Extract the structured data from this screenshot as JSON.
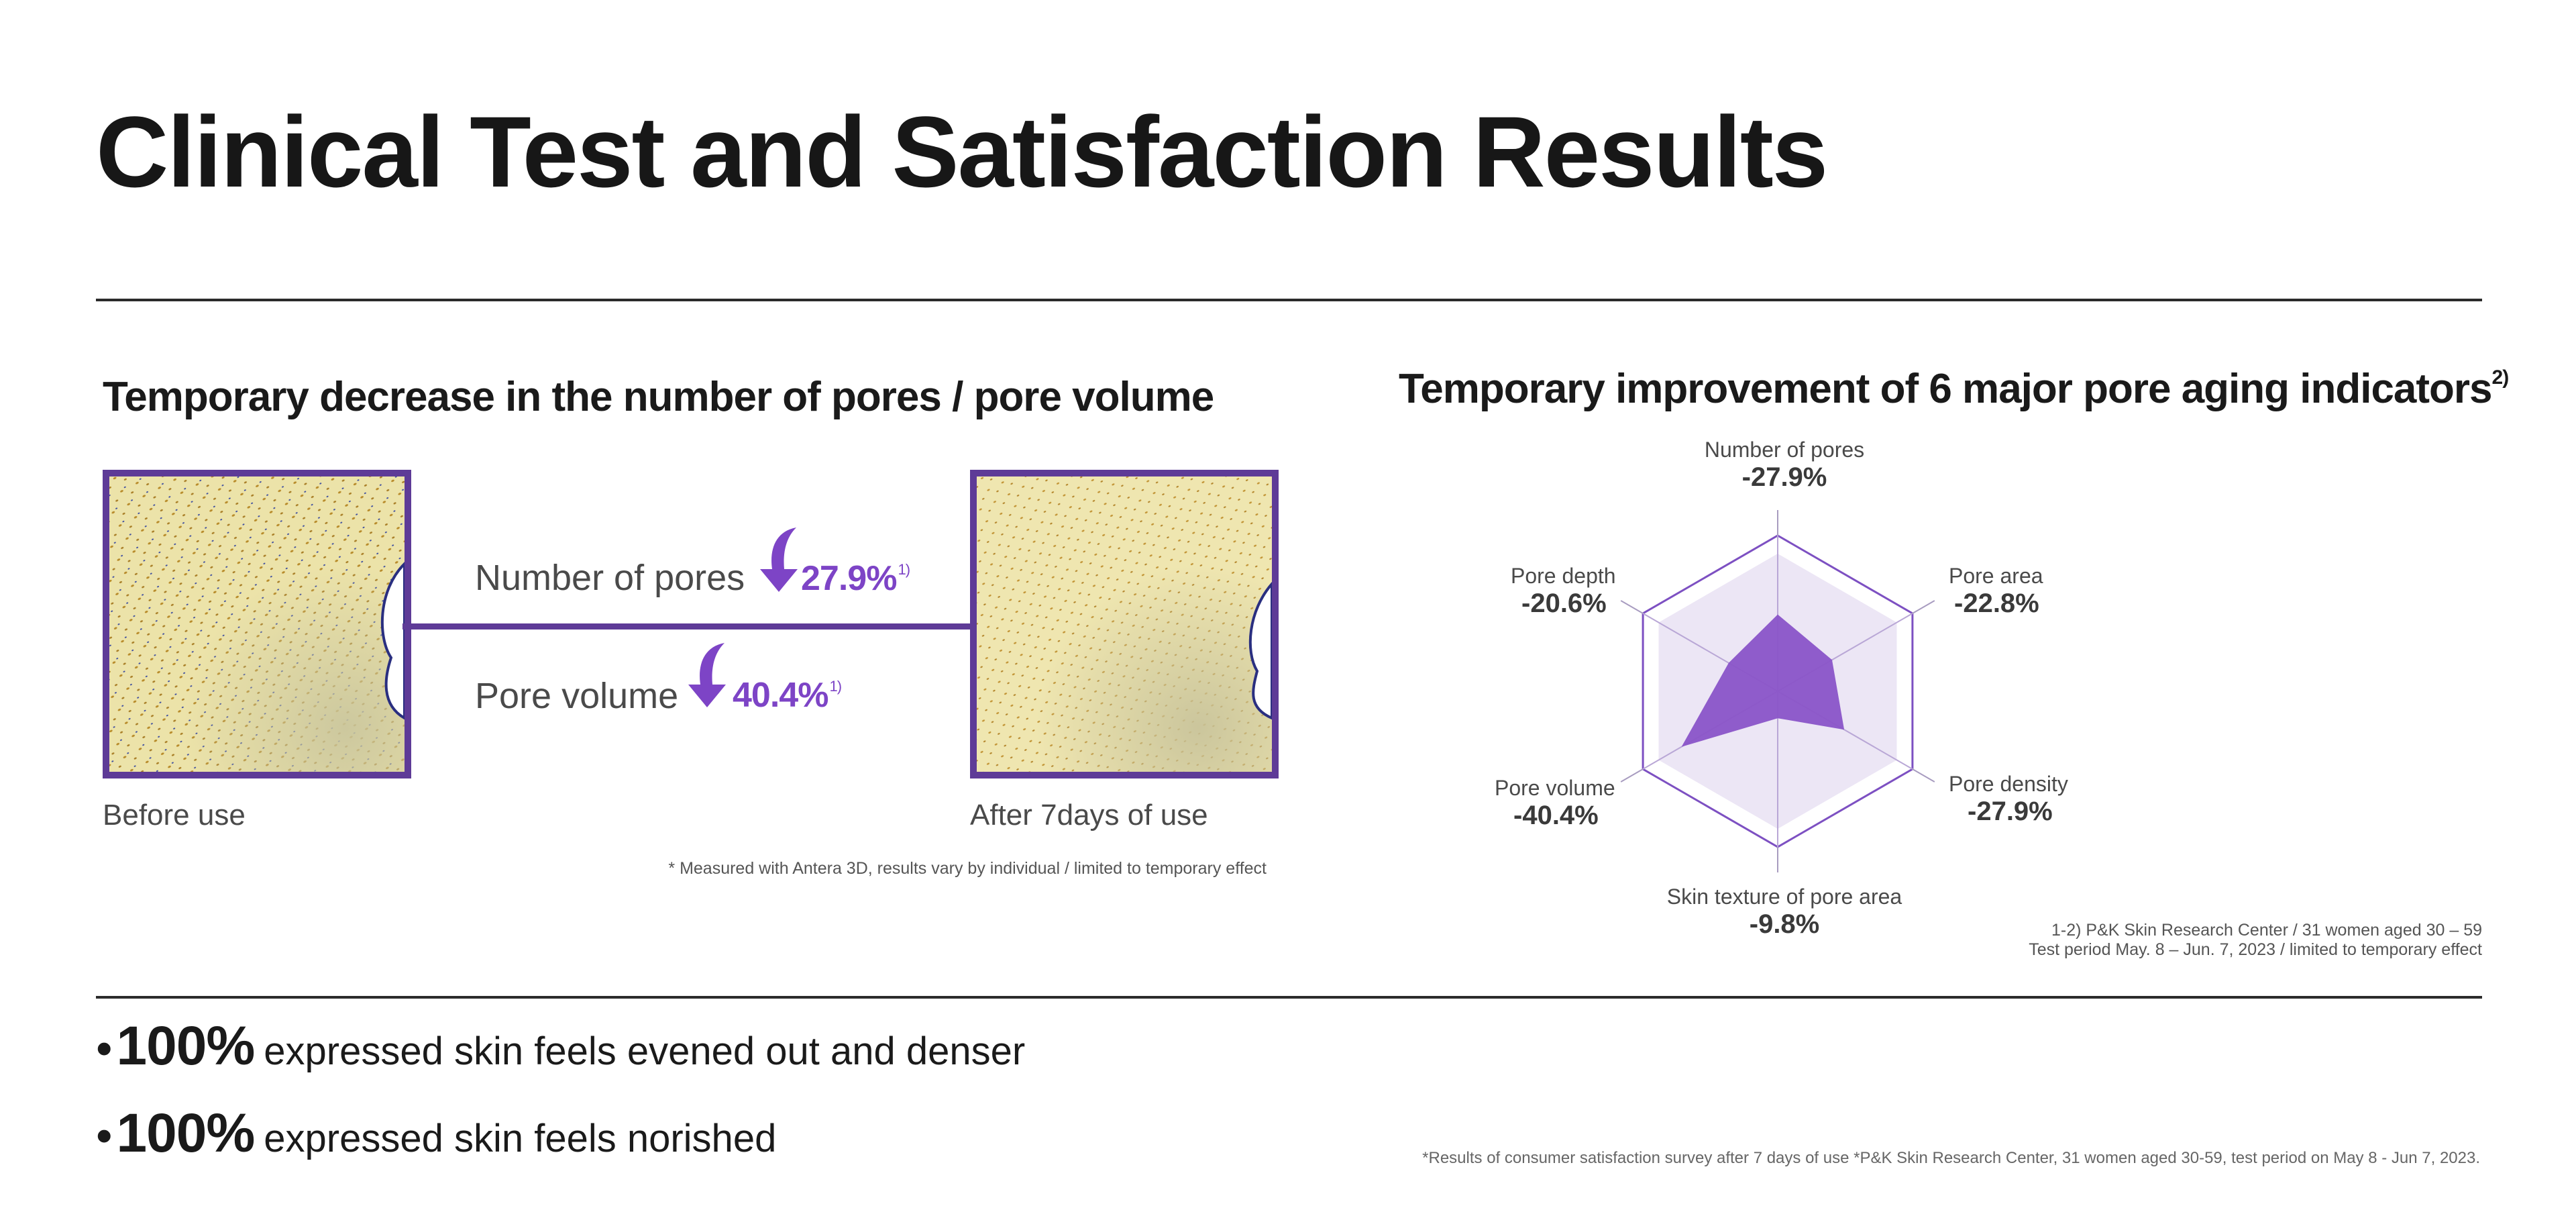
{
  "title": "Clinical Test and Satisfaction Results",
  "left_section": {
    "heading": "Temporary decrease in the number of pores / pore volume",
    "before_caption": "Before use",
    "after_caption": "After 7days of use",
    "metrics": [
      {
        "label": "Number of pores",
        "value": "27.9%",
        "note": "1)"
      },
      {
        "label": "Pore volume",
        "value": "40.4%",
        "note": "1)"
      }
    ],
    "footnote": "* Measured with Antera 3D, results vary by individual / limited to temporary effect"
  },
  "right_section": {
    "heading": "Temporary improvement of 6 major pore aging indicators",
    "heading_note": "2)",
    "footnote_line1": "1-2) P&K Skin Research Center / 31 women aged 30 – 59",
    "footnote_line2": "Test period May. 8 – Jun. 7, 2023 / limited to temporary effect"
  },
  "chart_data": {
    "type": "radar",
    "axes": [
      {
        "label": "Number of pores",
        "value_text": "-27.9%",
        "value": -27.9
      },
      {
        "label": "Pore area",
        "value_text": "-22.8%",
        "value": -22.8
      },
      {
        "label": "Pore density",
        "value_text": "-27.9%",
        "value": -27.9
      },
      {
        "label": "Skin texture of pore area",
        "value_text": "-9.8%",
        "value": -9.8
      },
      {
        "label": "Pore volume",
        "value_text": "-40.4%",
        "value": -40.4
      },
      {
        "label": "Pore depth",
        "value_text": "-20.6%",
        "value": -20.6
      }
    ],
    "colors": {
      "fill": "#8a54c8",
      "ring": "#ece6f5",
      "outline": "#7d50c2"
    }
  },
  "bullets": [
    {
      "big": "100%",
      "text": "expressed skin feels evened out and denser"
    },
    {
      "big": "100%",
      "text": "expressed skin feels norished"
    }
  ],
  "bottom_footnote": "*Results of consumer satisfaction survey after 7 days of use  *P&K Skin Research Center, 31 women aged 30-59, test period on May 8 - Jun 7, 2023."
}
